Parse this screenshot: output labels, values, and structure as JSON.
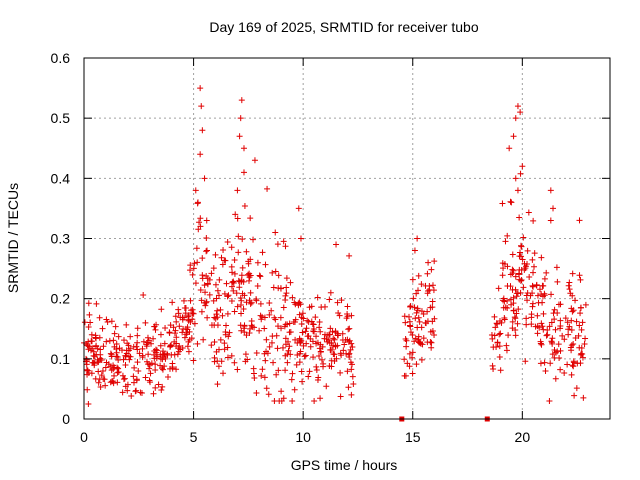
{
  "chart_data": {
    "type": "scatter",
    "title": "Day 169 of 2025, SRMTID for receiver tubo",
    "xlabel": "GPS time / hours",
    "ylabel": "SRMTID / TECUs",
    "xlim": [
      0,
      24
    ],
    "ylim": [
      0,
      0.6
    ],
    "xticks": [
      0,
      5,
      10,
      15,
      20
    ],
    "xtick_labels": [
      "0",
      "5",
      "10",
      "15",
      "20"
    ],
    "yticks": [
      0,
      0.1,
      0.2,
      0.3,
      0.4,
      0.5,
      0.6
    ],
    "ytick_labels": [
      "0",
      "0.1",
      "0.2",
      "0.3",
      "0.4",
      "0.5",
      "0.6"
    ],
    "grid": true,
    "marker": "+",
    "marker_color": "#e00000",
    "series": [
      {
        "name": "SRMTID",
        "segments": [
          {
            "t_start": 0.0,
            "t_end": 4.8,
            "points_per_hour": 55,
            "trend": [
              [
                0,
                0.11
              ],
              [
                1,
                0.1
              ],
              [
                2,
                0.1
              ],
              [
                3,
                0.095
              ],
              [
                4,
                0.12
              ],
              [
                4.8,
                0.16
              ]
            ],
            "spread": 0.03
          },
          {
            "t_start": 4.8,
            "t_end": 9.5,
            "points_per_hour": 55,
            "trend": [
              [
                4.8,
                0.16
              ],
              [
                5.3,
                0.22
              ],
              [
                6,
                0.17
              ],
              [
                7,
                0.2
              ],
              [
                7.5,
                0.2
              ],
              [
                8.5,
                0.14
              ],
              [
                9.5,
                0.14
              ]
            ],
            "spread": 0.06
          },
          {
            "t_start": 9.5,
            "t_end": 12.3,
            "points_per_hour": 55,
            "trend": [
              [
                9.5,
                0.14
              ],
              [
                10.5,
                0.12
              ],
              [
                11.5,
                0.13
              ],
              [
                12.3,
                0.12
              ]
            ],
            "spread": 0.035
          },
          {
            "t_start": 14.6,
            "t_end": 16.0,
            "points_per_hour": 55,
            "trend": [
              [
                14.6,
                0.12
              ],
              [
                15,
                0.15
              ],
              [
                15.5,
                0.17
              ],
              [
                16.0,
                0.17
              ]
            ],
            "spread": 0.035
          },
          {
            "t_start": 18.6,
            "t_end": 22.9,
            "points_per_hour": 55,
            "trend": [
              [
                18.6,
                0.15
              ],
              [
                19.5,
                0.22
              ],
              [
                20,
                0.25
              ],
              [
                21,
                0.17
              ],
              [
                22,
                0.14
              ],
              [
                22.9,
                0.12
              ]
            ],
            "spread": 0.05
          }
        ],
        "highlights": [
          {
            "x": 5.3,
            "y": 0.55
          },
          {
            "x": 5.35,
            "y": 0.52
          },
          {
            "x": 5.4,
            "y": 0.48
          },
          {
            "x": 5.3,
            "y": 0.44
          },
          {
            "x": 5.1,
            "y": 0.38
          },
          {
            "x": 5.5,
            "y": 0.4
          },
          {
            "x": 5.2,
            "y": 0.36
          },
          {
            "x": 5.6,
            "y": 0.33
          },
          {
            "x": 7.2,
            "y": 0.53
          },
          {
            "x": 7.15,
            "y": 0.5
          },
          {
            "x": 7.1,
            "y": 0.47
          },
          {
            "x": 7.3,
            "y": 0.45
          },
          {
            "x": 7.8,
            "y": 0.43
          },
          {
            "x": 7.3,
            "y": 0.41
          },
          {
            "x": 7.0,
            "y": 0.38
          },
          {
            "x": 6.9,
            "y": 0.34
          },
          {
            "x": 9.8,
            "y": 0.35
          },
          {
            "x": 9.9,
            "y": 0.3
          },
          {
            "x": 11.5,
            "y": 0.29
          },
          {
            "x": 10.5,
            "y": 0.03
          },
          {
            "x": 15.2,
            "y": 0.3
          },
          {
            "x": 15.1,
            "y": 0.28
          },
          {
            "x": 15.7,
            "y": 0.26
          },
          {
            "x": 19.8,
            "y": 0.52
          },
          {
            "x": 19.9,
            "y": 0.51
          },
          {
            "x": 19.7,
            "y": 0.5
          },
          {
            "x": 19.6,
            "y": 0.47
          },
          {
            "x": 19.4,
            "y": 0.45
          },
          {
            "x": 20.0,
            "y": 0.42
          },
          {
            "x": 19.7,
            "y": 0.4
          },
          {
            "x": 19.8,
            "y": 0.38
          },
          {
            "x": 19.5,
            "y": 0.36
          },
          {
            "x": 21.3,
            "y": 0.38
          },
          {
            "x": 21.4,
            "y": 0.35
          },
          {
            "x": 21.3,
            "y": 0.33
          },
          {
            "x": 0.2,
            "y": 0.025
          },
          {
            "x": 12.2,
            "y": 0.04
          }
        ],
        "zero_markers": [
          {
            "x": 14.5,
            "y": 0.0
          },
          {
            "x": 18.4,
            "y": 0.0
          }
        ]
      }
    ]
  }
}
